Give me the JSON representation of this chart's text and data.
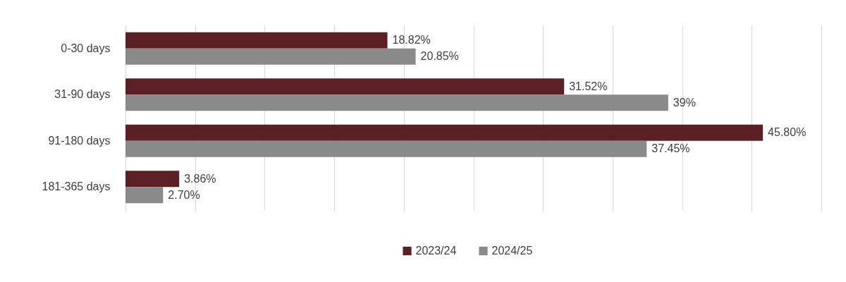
{
  "chart_data": {
    "type": "bar",
    "orientation": "horizontal",
    "categories": [
      "0-30 days",
      "31-90 days",
      "91-180 days",
      "181-365 days"
    ],
    "series": [
      {
        "name": "2023/24",
        "color": "#5c1f24",
        "values": [
          18.82,
          31.52,
          45.8,
          3.86
        ],
        "value_labels": [
          "18.82%",
          "31.52%",
          "45.80%",
          "3.86%"
        ]
      },
      {
        "name": "2024/25",
        "color": "#8a8a8a",
        "values": [
          20.85,
          39,
          37.45,
          2.7
        ],
        "value_labels": [
          "20.85%",
          "39%",
          "37.45%",
          "2.70%"
        ]
      }
    ],
    "xlim": [
      0,
      50
    ],
    "xticks": [
      {
        "value": 0,
        "label": null
      },
      {
        "value": 5,
        "label": null
      },
      {
        "value": 10,
        "label": null
      },
      {
        "value": 15,
        "label": null
      },
      {
        "value": 20,
        "label": null
      },
      {
        "value": 25,
        "label": null
      },
      {
        "value": 30,
        "label": null
      },
      {
        "value": 35,
        "label": null
      },
      {
        "value": 40,
        "label": null
      },
      {
        "value": 45,
        "label": null
      },
      {
        "value": 50,
        "label": null
      }
    ],
    "tick_labels": "y",
    "grid": "x",
    "legend": "bottom"
  }
}
